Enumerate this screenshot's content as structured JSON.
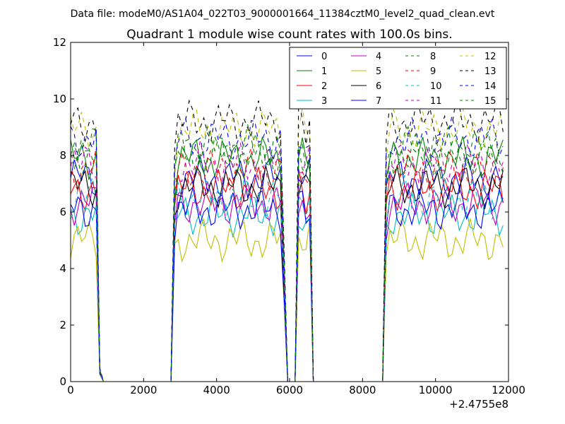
{
  "page": {
    "suptitle": "Data file: modeM0/AS1A04_022T03_9000001664_11384cztM0_level2_quad_clean.evt"
  },
  "chart_data": {
    "type": "line",
    "title": "Quadrant 1 module wise count rates with 100.0s bins.",
    "xlabel": "",
    "ylabel": "",
    "x_offset_label": "+2.4755e8",
    "xlim": [
      0,
      12000
    ],
    "ylim": [
      0,
      12
    ],
    "xticks": [
      0,
      2000,
      4000,
      6000,
      8000,
      10000,
      12000
    ],
    "xtick_labels": [
      "0",
      "2000",
      "4000",
      "6000",
      "8000",
      "10000",
      "12000"
    ],
    "yticks": [
      0,
      2,
      4,
      6,
      8,
      10,
      12
    ],
    "ytick_labels": [
      "0",
      "2",
      "4",
      "6",
      "8",
      "10",
      "12"
    ],
    "legend": {
      "location": "top-right",
      "ncol": 4
    },
    "x": [
      0,
      100,
      200,
      300,
      400,
      500,
      600,
      700,
      800,
      900,
      1000,
      1200,
      1600,
      2000,
      2400,
      2750,
      2850,
      2950,
      3050,
      3150,
      3250,
      3350,
      3450,
      3550,
      3650,
      3750,
      3850,
      3950,
      4050,
      4150,
      4250,
      4350,
      4450,
      4550,
      4650,
      4750,
      4850,
      4950,
      5050,
      5150,
      5250,
      5350,
      5450,
      5550,
      5650,
      5750,
      5850,
      5950,
      6050,
      6150,
      6250,
      6350,
      6450,
      6550,
      6650,
      6750,
      7000,
      7500,
      8000,
      8550,
      8650,
      8750,
      8850,
      8950,
      9050,
      9150,
      9250,
      9350,
      9450,
      9550,
      9650,
      9750,
      9850,
      9950,
      10050,
      10150,
      10250,
      10350,
      10450,
      10550,
      10650,
      10750,
      10850,
      10950,
      11050,
      11150,
      11250,
      11350,
      11450,
      11550,
      11650,
      11750,
      11850
    ],
    "series": [
      {
        "name": "0",
        "color": "#0000ff",
        "dash": "solid",
        "base": 7.2
      },
      {
        "name": "1",
        "color": "#008000",
        "dash": "solid",
        "base": 7.9
      },
      {
        "name": "2",
        "color": "#ff0000",
        "dash": "solid",
        "base": 6.8
      },
      {
        "name": "3",
        "color": "#00bfbf",
        "dash": "solid",
        "base": 5.9
      },
      {
        "name": "4",
        "color": "#bf00bf",
        "dash": "solid",
        "base": 6.3
      },
      {
        "name": "5",
        "color": "#bfbf00",
        "dash": "solid",
        "base": 5.0
      },
      {
        "name": "6",
        "color": "#000000",
        "dash": "solid",
        "base": 6.9
      },
      {
        "name": "7",
        "color": "#0000ff",
        "dash": "solid",
        "base": 6.1
      },
      {
        "name": "8",
        "color": "#008000",
        "dash": "dashed",
        "base": 8.0
      },
      {
        "name": "9",
        "color": "#ff0000",
        "dash": "dashed",
        "base": 7.5
      },
      {
        "name": "10",
        "color": "#00bfbf",
        "dash": "dashed",
        "base": 6.5
      },
      {
        "name": "11",
        "color": "#bf00bf",
        "dash": "dashed",
        "base": 7.7
      },
      {
        "name": "12",
        "color": "#bfbf00",
        "dash": "dashed",
        "base": 8.9
      },
      {
        "name": "13",
        "color": "#000000",
        "dash": "dashed",
        "base": 9.2
      },
      {
        "name": "14",
        "color": "#0000ff",
        "dash": "dashed",
        "base": 8.6
      },
      {
        "name": "15",
        "color": "#008000",
        "dash": "dashed",
        "base": 8.3
      }
    ],
    "activity_profile": [
      1,
      1,
      1,
      1,
      1,
      1,
      1,
      1,
      0.05,
      0,
      0,
      0,
      0,
      0,
      0,
      0,
      0.9,
      1,
      1,
      1,
      1,
      1,
      1,
      1,
      1,
      1,
      1,
      1,
      1,
      1,
      1,
      1,
      1,
      1,
      1,
      1,
      1,
      1,
      1,
      1,
      1,
      1,
      1,
      1,
      1,
      1,
      0.5,
      0,
      0,
      0,
      1,
      1,
      0.95,
      1,
      0,
      0,
      0,
      0,
      0,
      0,
      0.9,
      1,
      1,
      1,
      1,
      1,
      1,
      1,
      1,
      1,
      1,
      1,
      1,
      1,
      1,
      1,
      1,
      1,
      1,
      1,
      1,
      1,
      1,
      1,
      1,
      1,
      1,
      1,
      1,
      1,
      1,
      1,
      1
    ]
  }
}
